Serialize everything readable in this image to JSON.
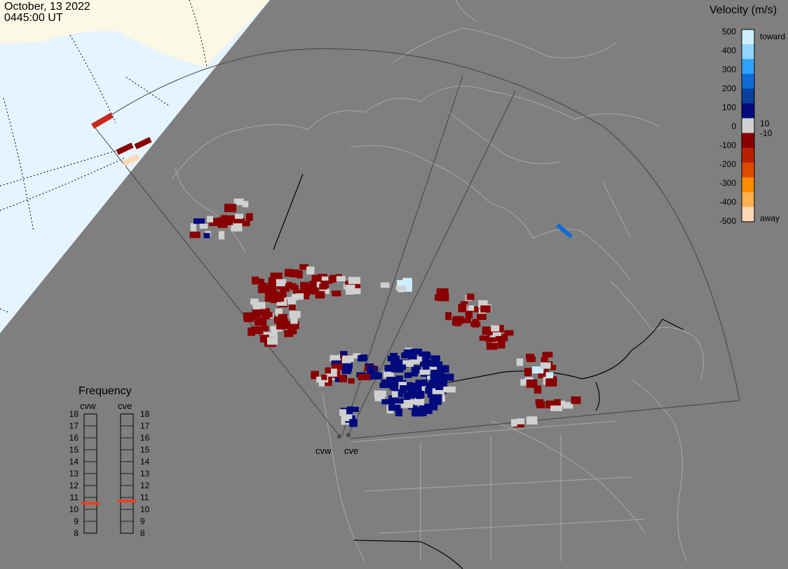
{
  "header": {
    "date": "October, 13 2022",
    "time": "0445:00 UT"
  },
  "radars": [
    "cvw",
    "cve"
  ],
  "velocity_scale": {
    "title": "Velocity (m/s)",
    "ticks": [
      "500",
      "400",
      "300",
      "200",
      "100",
      "10",
      "0",
      "-10",
      "-100",
      "-200",
      "-300",
      "-400",
      "-500"
    ],
    "top_label": "toward",
    "bottom_label": "away",
    "colors": [
      "#cdeeff",
      "#8fd5ff",
      "#2fa3ff",
      "#0f6ad6",
      "#0a3e9c",
      "#000a7c",
      "#d0d0d0",
      "#8a0000",
      "#b82000",
      "#de4a00",
      "#ff8c00",
      "#ffb050",
      "#ffd8b8"
    ]
  },
  "frequency_panel": {
    "title": "Frequency",
    "ticks": [
      "18",
      "17",
      "16",
      "15",
      "14",
      "13",
      "12",
      "11",
      "10",
      "9",
      "8"
    ],
    "radars": [
      {
        "name": "cvw",
        "frequency": 10.5
      },
      {
        "name": "cve",
        "frequency": 10.7
      }
    ],
    "indicator_color": "#e8401c"
  },
  "colors": {
    "background": "#7f7f7f",
    "land_outline": "#a8a8a8",
    "night_region": "#e6f4ff",
    "snow_region": "#fbf9e6",
    "ground_scatter": "#d0d0d0",
    "away_color": "#8a0000",
    "toward_color": "#000a7c"
  }
}
